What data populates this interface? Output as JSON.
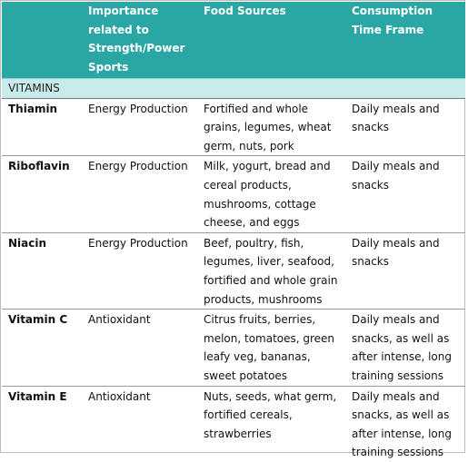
{
  "header": {
    "col1": "",
    "col2": "Importance related to Strength/Power Sports",
    "col3": "Food Sources",
    "col4": "Consumption Time Frame"
  },
  "section": "VITAMINS",
  "rows": [
    {
      "nutrient": "Thiamin",
      "importance": "Energy Production",
      "sources": "Fortified and whole grains, legumes, wheat germ, nuts, pork",
      "timeframe": "Daily meals and snacks"
    },
    {
      "nutrient": "Riboflavin",
      "importance": "Energy Production",
      "sources": "Milk, yogurt, bread and cereal products, mushrooms, cottage cheese, and eggs",
      "timeframe": "Daily meals and snacks"
    },
    {
      "nutrient": "Niacin",
      "importance": "Energy Production",
      "sources": "Beef, poultry, fish, legumes, liver, seafood, fortified and whole grain products, mushrooms",
      "timeframe": "Daily meals and snacks"
    },
    {
      "nutrient": "Vitamin C",
      "importance": "Antioxidant",
      "sources": "Citrus fruits, berries, melon, tomatoes, green leafy veg, bananas, sweet potatoes",
      "timeframe": "Daily meals and snacks, as well as after intense, long training sessions"
    },
    {
      "nutrient": "Vitamin E",
      "importance": "Antioxidant",
      "sources": "Nuts, seeds, what germ, fortified cereals, strawberries",
      "timeframe": "Daily meals and snacks, as well as after intense, long training sessions"
    }
  ],
  "colors": {
    "header_bg": "#2aa7a5",
    "section_bg": "#c8ecec"
  }
}
